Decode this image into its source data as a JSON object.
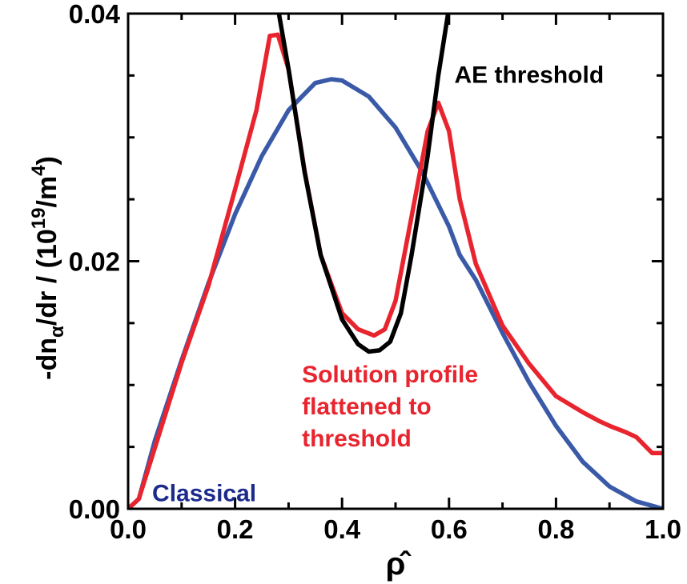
{
  "chart_data": {
    "type": "line",
    "xlabel": "ρ̂",
    "ylabel": {
      "prefix": "-dn",
      "prefix_sub": "α",
      "middle": "/dr / (10",
      "middle_sup": "19",
      "suffix": "/m",
      "suffix_sup": "4",
      "close": ")"
    },
    "xlim": [
      0.0,
      1.0
    ],
    "ylim": [
      0.0,
      0.04
    ],
    "x_ticks": [
      "0.0",
      "0.2",
      "0.4",
      "0.6",
      "0.8",
      "1.0"
    ],
    "y_ticks": [
      "0.00",
      "0.02",
      "0.04"
    ],
    "grid": false,
    "series": [
      {
        "name": "Classical",
        "color": "#3a5aa8",
        "x": [
          0.0,
          0.02,
          0.05,
          0.1,
          0.15,
          0.2,
          0.25,
          0.3,
          0.35,
          0.38,
          0.4,
          0.45,
          0.5,
          0.55,
          0.6,
          0.62,
          0.65,
          0.7,
          0.75,
          0.8,
          0.85,
          0.9,
          0.95,
          1.0
        ],
        "y": [
          0.0,
          0.0008,
          0.0055,
          0.012,
          0.0182,
          0.0238,
          0.0285,
          0.0322,
          0.0344,
          0.0347,
          0.0346,
          0.0333,
          0.0308,
          0.0272,
          0.0228,
          0.0205,
          0.0185,
          0.0142,
          0.0102,
          0.0067,
          0.0038,
          0.0018,
          0.0006,
          0.0
        ]
      },
      {
        "name": "Solution profile flattened to threshold",
        "color": "#e8242e",
        "x": [
          0.0,
          0.02,
          0.1,
          0.15,
          0.2,
          0.24,
          0.265,
          0.28,
          0.3,
          0.33,
          0.36,
          0.4,
          0.43,
          0.46,
          0.48,
          0.5,
          0.53,
          0.56,
          0.58,
          0.6,
          0.62,
          0.65,
          0.7,
          0.75,
          0.8,
          0.85,
          0.88,
          0.9,
          0.93,
          0.95,
          0.98,
          1.0
        ],
        "y": [
          0.0,
          0.0008,
          0.0118,
          0.018,
          0.0258,
          0.0322,
          0.0382,
          0.0383,
          0.0355,
          0.0273,
          0.0205,
          0.0158,
          0.0145,
          0.014,
          0.0145,
          0.0168,
          0.0236,
          0.0305,
          0.0328,
          0.0305,
          0.025,
          0.0198,
          0.0148,
          0.0117,
          0.0091,
          0.0078,
          0.0071,
          0.0067,
          0.0062,
          0.0058,
          0.0045,
          0.0045
        ]
      },
      {
        "name": "AE threshold",
        "color": "#000000",
        "x": [
          0.28,
          0.3,
          0.33,
          0.36,
          0.4,
          0.43,
          0.45,
          0.47,
          0.49,
          0.51,
          0.53,
          0.56,
          0.58,
          0.6
        ],
        "y": [
          0.0405,
          0.0355,
          0.0272,
          0.0205,
          0.0153,
          0.0133,
          0.0127,
          0.0128,
          0.0135,
          0.0158,
          0.0205,
          0.0285,
          0.035,
          0.0405
        ]
      }
    ],
    "annotations": [
      {
        "id": "ae",
        "lines": [
          "AE threshold"
        ],
        "color": "#000000",
        "x": 0.61,
        "y": 0.0344
      },
      {
        "id": "solution",
        "lines": [
          "Solution profile",
          "flattened to",
          "threshold"
        ],
        "color": "#e8242e",
        "x": 0.325,
        "y": 0.0102
      },
      {
        "id": "classical",
        "lines": [
          "Classical"
        ],
        "color": "#1c2a8c",
        "x": 0.045,
        "y": 0.0006
      }
    ]
  }
}
